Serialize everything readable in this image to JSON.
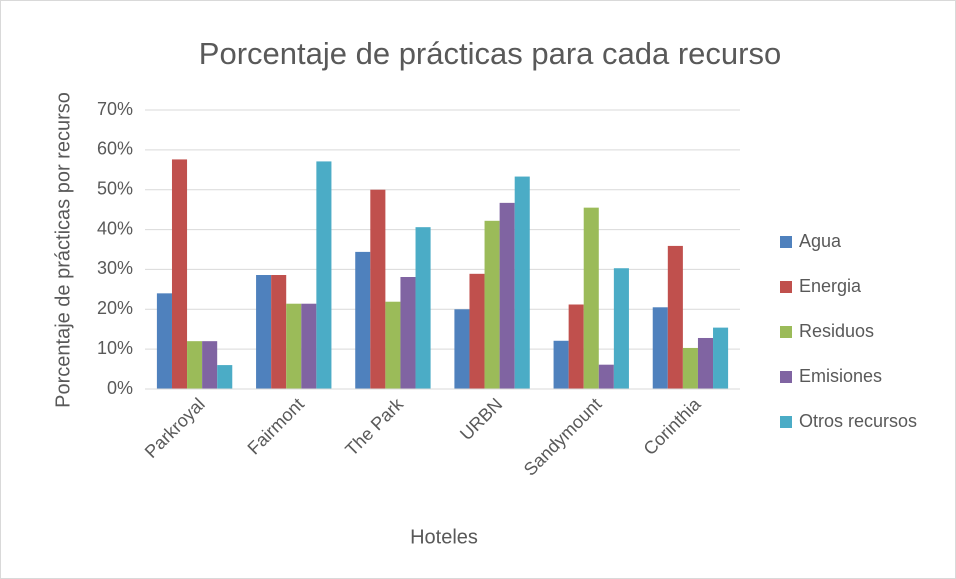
{
  "chart_data": {
    "type": "bar",
    "title": "Porcentaje de prácticas para cada recurso",
    "x_label": "Hoteles",
    "y_label": "Porcentaje de prácticas por recurso",
    "categories": [
      "Parkroyal",
      "Fairmont",
      "The Park",
      "URBN",
      "Sandymount",
      "Corinthia"
    ],
    "series": [
      {
        "name": "Agua",
        "color": "#4f81bd",
        "values": [
          24,
          28.6,
          34.4,
          20,
          12.1,
          20.5
        ]
      },
      {
        "name": "Energia",
        "color": "#c0504d",
        "values": [
          57.6,
          28.6,
          50,
          28.9,
          21.2,
          35.9
        ]
      },
      {
        "name": "Residuos",
        "color": "#9bbb59",
        "values": [
          12,
          21.4,
          21.9,
          42.2,
          45.5,
          10.3
        ]
      },
      {
        "name": "Emisiones",
        "color": "#8064a2",
        "values": [
          12,
          21.4,
          28.1,
          46.7,
          6.1,
          12.8
        ]
      },
      {
        "name": "Otros recursos",
        "color": "#4bacc6",
        "values": [
          6,
          57.1,
          40.6,
          53.3,
          30.3,
          15.4
        ]
      }
    ],
    "ylim": [
      0,
      70
    ],
    "yticks": [
      {
        "value": 0,
        "label": "0%"
      },
      {
        "value": 10,
        "label": "10%"
      },
      {
        "value": 20,
        "label": "20%"
      },
      {
        "value": 30,
        "label": "30%"
      },
      {
        "value": 40,
        "label": "40%"
      },
      {
        "value": 50,
        "label": "50%"
      },
      {
        "value": 60,
        "label": "60%"
      },
      {
        "value": 70,
        "label": "70%"
      }
    ],
    "grid": true,
    "legend": "right"
  }
}
